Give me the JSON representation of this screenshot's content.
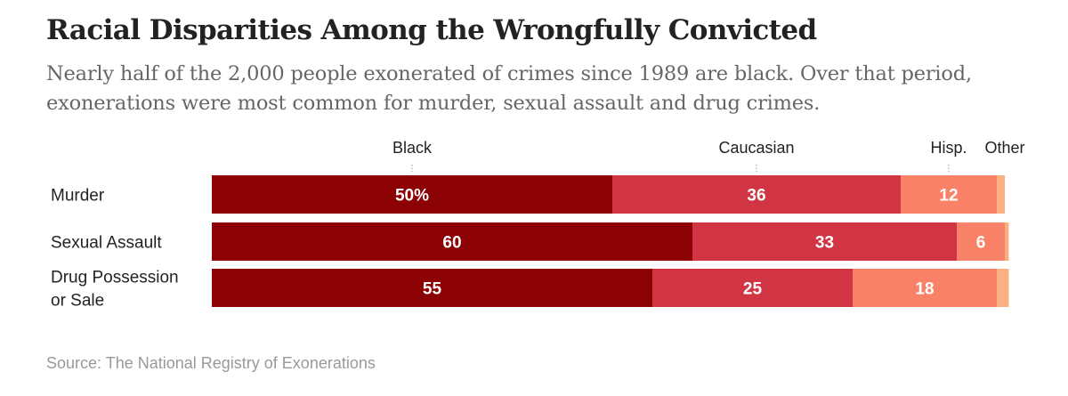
{
  "title": "Racial Disparities Among the Wrongfully Convicted",
  "subtitle": "Nearly half of the 2,000 people exonerated of crimes since 1989 are black. Over that period, exonerations were most common for murder, sexual assault and drug crimes.",
  "source": "Source: The National Registry of Exonerations",
  "colors": {
    "black": "#8c0103",
    "caucasian": "#d13443",
    "hispanic": "#f98167",
    "other": "#fbb083"
  },
  "chart_data": {
    "type": "bar",
    "orientation": "horizontal",
    "stacked": true,
    "title": "Racial Disparities Among the Wrongfully Convicted",
    "subtitle": "Nearly half of the 2,000 people exonerated of crimes since 1989 are black. Over that period, exonerations were most common for murder, sexual assault and drug crimes.",
    "xlabel": "",
    "ylabel": "",
    "xlim": [
      0,
      100
    ],
    "unit": "%",
    "grid": false,
    "legend": "inline-top",
    "categories": [
      {
        "name": "murder",
        "lines": [
          "Murder"
        ]
      },
      {
        "name": "sexual-assault",
        "lines": [
          "Sexual Assault"
        ]
      },
      {
        "name": "drug-possession-or-sale",
        "lines": [
          "Drug Possession",
          "or Sale"
        ]
      }
    ],
    "series": [
      {
        "name": "Black",
        "key": "black",
        "values": [
          50,
          60,
          55
        ],
        "labels": [
          "50%",
          "60",
          "55"
        ]
      },
      {
        "name": "Caucasian",
        "key": "caucasian",
        "values": [
          36,
          33,
          25
        ],
        "labels": [
          "36",
          "33",
          "25"
        ]
      },
      {
        "name": "Hisp.",
        "key": "hispanic",
        "values": [
          12,
          6,
          18
        ],
        "labels": [
          "12",
          "6",
          "18"
        ]
      },
      {
        "name": "Other",
        "key": "other",
        "values": [
          1,
          0.5,
          1.5
        ],
        "labels": [
          "",
          "",
          ""
        ]
      }
    ]
  }
}
